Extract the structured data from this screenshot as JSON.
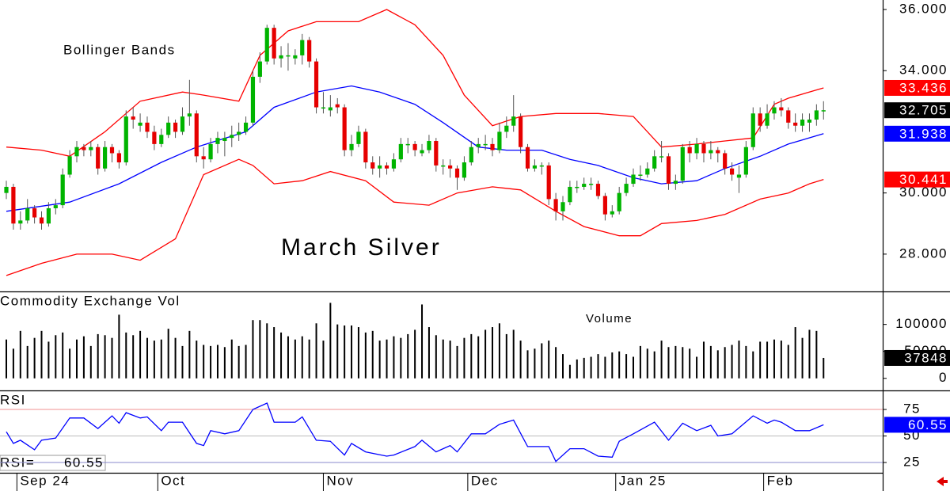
{
  "chart_data": [
    {
      "type": "candlestick",
      "title": "March Silver",
      "subtitle": "Bollinger Bands",
      "up_color": "#00b400",
      "down_color": "#e60000",
      "ohlc": [
        [
          30.0,
          30.4,
          29.8,
          30.2
        ],
        [
          30.2,
          30.3,
          28.8,
          29.0
        ],
        [
          29.0,
          29.4,
          28.8,
          29.1
        ],
        [
          29.1,
          29.8,
          29.0,
          29.5
        ],
        [
          29.5,
          29.6,
          29.0,
          29.2
        ],
        [
          29.2,
          29.4,
          28.8,
          29.0
        ],
        [
          29.0,
          29.7,
          28.9,
          29.5
        ],
        [
          29.5,
          29.8,
          29.3,
          29.6
        ],
        [
          29.6,
          30.8,
          29.5,
          30.6
        ],
        [
          30.6,
          31.4,
          30.5,
          31.2
        ],
        [
          31.2,
          31.7,
          31.0,
          31.5
        ],
        [
          31.5,
          31.6,
          31.2,
          31.4
        ],
        [
          31.4,
          31.7,
          31.2,
          31.5
        ],
        [
          31.5,
          31.6,
          30.6,
          30.8
        ],
        [
          30.8,
          31.7,
          30.7,
          31.5
        ],
        [
          31.5,
          31.6,
          31.0,
          31.3
        ],
        [
          31.3,
          31.4,
          30.8,
          31.0
        ],
        [
          31.0,
          32.7,
          30.9,
          32.5
        ],
        [
          32.5,
          32.8,
          32.1,
          32.4
        ],
        [
          32.2,
          32.6,
          32.0,
          32.3
        ],
        [
          32.3,
          32.5,
          31.8,
          32.0
        ],
        [
          32.0,
          32.2,
          31.4,
          31.6
        ],
        [
          31.6,
          32.1,
          31.5,
          31.9
        ],
        [
          31.9,
          32.5,
          31.8,
          32.3
        ],
        [
          32.3,
          32.4,
          31.8,
          32.0
        ],
        [
          32.0,
          32.8,
          31.9,
          32.5
        ],
        [
          32.5,
          33.7,
          32.2,
          32.6
        ],
        [
          32.6,
          32.7,
          31.0,
          31.2
        ],
        [
          31.2,
          31.5,
          30.8,
          31.1
        ],
        [
          31.1,
          31.8,
          31.0,
          31.6
        ],
        [
          31.6,
          32.0,
          31.3,
          31.8
        ],
        [
          31.7,
          32.0,
          31.2,
          31.8
        ],
        [
          31.8,
          32.2,
          31.5,
          31.9
        ],
        [
          31.9,
          32.3,
          31.7,
          32.0
        ],
        [
          32.0,
          32.5,
          31.9,
          32.3
        ],
        [
          32.3,
          34.0,
          32.2,
          33.8
        ],
        [
          33.8,
          34.6,
          33.6,
          34.3
        ],
        [
          34.3,
          35.5,
          34.2,
          35.4
        ],
        [
          35.4,
          35.5,
          34.2,
          34.4
        ],
        [
          34.4,
          34.8,
          34.1,
          34.5
        ],
        [
          34.5,
          34.9,
          34.0,
          34.5
        ],
        [
          34.4,
          34.7,
          34.2,
          34.5
        ],
        [
          34.5,
          35.2,
          34.2,
          35.0
        ],
        [
          35.0,
          35.1,
          34.1,
          34.3
        ],
        [
          34.3,
          34.4,
          32.6,
          32.8
        ],
        [
          32.8,
          33.3,
          32.6,
          32.8
        ],
        [
          32.7,
          33.2,
          32.5,
          32.8
        ],
        [
          32.9,
          33.1,
          32.6,
          32.8
        ],
        [
          32.8,
          32.9,
          31.2,
          31.4
        ],
        [
          31.4,
          31.9,
          31.2,
          31.6
        ],
        [
          31.6,
          32.2,
          31.5,
          32.0
        ],
        [
          32.0,
          32.1,
          30.8,
          31.0
        ],
        [
          31.0,
          31.2,
          30.6,
          30.8
        ],
        [
          30.8,
          31.2,
          30.5,
          30.9
        ],
        [
          30.9,
          31.0,
          30.6,
          30.8
        ],
        [
          30.8,
          31.3,
          30.7,
          31.1
        ],
        [
          31.1,
          31.8,
          31.0,
          31.6
        ],
        [
          31.6,
          31.8,
          31.3,
          31.6
        ],
        [
          31.6,
          31.7,
          31.2,
          31.4
        ],
        [
          31.3,
          31.6,
          31.2,
          31.4
        ],
        [
          31.4,
          31.9,
          31.3,
          31.7
        ],
        [
          31.7,
          31.8,
          30.7,
          30.9
        ],
        [
          30.9,
          31.1,
          30.6,
          30.9
        ],
        [
          30.9,
          31.1,
          30.5,
          30.8
        ],
        [
          30.8,
          30.9,
          30.1,
          30.5
        ],
        [
          30.5,
          31.2,
          30.4,
          31.0
        ],
        [
          31.0,
          31.7,
          30.9,
          31.5
        ],
        [
          31.5,
          31.8,
          31.3,
          31.6
        ],
        [
          31.6,
          31.9,
          31.4,
          31.6
        ],
        [
          31.6,
          31.8,
          31.2,
          31.4
        ],
        [
          31.4,
          32.3,
          31.3,
          32.0
        ],
        [
          32.0,
          32.5,
          31.8,
          32.2
        ],
        [
          32.2,
          33.2,
          32.0,
          32.5
        ],
        [
          32.5,
          32.6,
          31.3,
          31.5
        ],
        [
          31.5,
          31.6,
          30.7,
          30.8
        ],
        [
          30.8,
          31.1,
          30.7,
          30.9
        ],
        [
          30.9,
          31.0,
          30.6,
          30.9
        ],
        [
          30.9,
          31.0,
          29.6,
          29.8
        ],
        [
          29.8,
          30.0,
          29.1,
          29.4
        ],
        [
          29.4,
          29.9,
          29.1,
          29.7
        ],
        [
          29.7,
          30.4,
          29.6,
          30.2
        ],
        [
          30.2,
          30.4,
          30.0,
          30.2
        ],
        [
          30.2,
          30.5,
          30.1,
          30.3
        ],
        [
          30.3,
          30.5,
          30.1,
          30.3
        ],
        [
          30.3,
          30.4,
          29.8,
          29.9
        ],
        [
          29.9,
          30.0,
          29.1,
          29.3
        ],
        [
          29.3,
          29.6,
          29.2,
          29.4
        ],
        [
          29.4,
          30.2,
          29.3,
          30.0
        ],
        [
          30.0,
          30.5,
          29.9,
          30.3
        ],
        [
          30.3,
          30.8,
          30.2,
          30.6
        ],
        [
          30.6,
          30.9,
          30.4,
          30.6
        ],
        [
          30.6,
          31.0,
          30.5,
          30.8
        ],
        [
          30.8,
          31.4,
          30.7,
          31.2
        ],
        [
          31.2,
          31.7,
          31.0,
          31.2
        ],
        [
          31.2,
          31.3,
          30.1,
          30.3
        ],
        [
          30.3,
          30.6,
          30.1,
          30.4
        ],
        [
          30.4,
          31.6,
          30.3,
          31.5
        ],
        [
          31.5,
          31.7,
          31.0,
          31.3
        ],
        [
          31.3,
          31.8,
          31.1,
          31.6
        ],
        [
          31.6,
          31.7,
          31.0,
          31.3
        ],
        [
          31.3,
          31.7,
          31.1,
          31.4
        ],
        [
          31.4,
          31.5,
          31.0,
          31.3
        ],
        [
          31.3,
          31.4,
          30.6,
          30.8
        ],
        [
          30.8,
          31.0,
          30.4,
          30.6
        ],
        [
          30.5,
          30.9,
          30.0,
          30.6
        ],
        [
          30.6,
          31.7,
          30.5,
          31.5
        ],
        [
          31.5,
          32.8,
          31.4,
          32.6
        ],
        [
          32.6,
          32.8,
          32.0,
          32.2
        ],
        [
          32.2,
          32.9,
          32.1,
          32.6
        ],
        [
          32.6,
          33.0,
          32.4,
          32.8
        ],
        [
          32.8,
          33.1,
          32.5,
          32.7
        ],
        [
          32.7,
          32.8,
          32.1,
          32.3
        ],
        [
          32.3,
          32.6,
          32.0,
          32.2
        ],
        [
          32.2,
          32.6,
          32.0,
          32.4
        ],
        [
          32.3,
          32.6,
          32.0,
          32.4
        ],
        [
          32.4,
          32.9,
          32.2,
          32.7
        ],
        [
          32.7,
          33.0,
          32.4,
          32.705
        ]
      ],
      "series": [
        {
          "color": "#ff0000",
          "x": [
            0,
            5,
            9,
            14,
            19,
            25,
            28,
            33,
            36,
            40,
            44,
            50,
            54,
            58,
            62,
            65,
            69,
            73,
            78,
            84,
            89,
            93,
            98,
            102,
            106,
            109,
            111,
            116
          ],
          "values": [
            31.5,
            31.4,
            31.2,
            32.0,
            33.0,
            33.3,
            33.2,
            33.0,
            34.5,
            35.3,
            35.6,
            35.6,
            36.0,
            35.5,
            34.5,
            33.2,
            32.2,
            32.5,
            32.6,
            32.6,
            32.5,
            31.5,
            31.6,
            31.7,
            31.8,
            32.9,
            33.1,
            33.436
          ]
        },
        {
          "color": "#0000ff",
          "x": [
            0,
            9,
            16,
            22,
            27,
            34,
            38,
            44,
            49,
            53,
            58,
            62,
            67,
            71,
            76,
            80,
            84,
            89,
            93,
            98,
            102,
            107,
            111,
            116
          ],
          "values": [
            29.4,
            29.7,
            30.3,
            31.0,
            31.5,
            32.0,
            32.8,
            33.3,
            33.5,
            33.3,
            32.9,
            32.3,
            31.5,
            31.4,
            31.4,
            31.1,
            30.9,
            30.5,
            30.3,
            30.4,
            30.8,
            31.2,
            31.6,
            31.938
          ]
        },
        {
          "color": "#ff0000",
          "x": [
            0,
            5,
            10,
            15,
            19,
            24,
            28,
            33,
            35,
            38,
            42,
            46,
            51,
            55,
            60,
            64,
            69,
            73,
            78,
            82,
            87,
            90,
            93,
            98,
            102,
            107,
            111,
            114,
            116
          ],
          "values": [
            27.3,
            27.7,
            28.0,
            28.0,
            27.8,
            28.5,
            30.6,
            31.1,
            30.9,
            30.3,
            30.4,
            30.7,
            30.4,
            29.7,
            29.6,
            30.0,
            30.2,
            30.1,
            29.4,
            28.9,
            28.6,
            28.6,
            29.0,
            29.1,
            29.3,
            29.8,
            30.0,
            30.3,
            30.441
          ]
        }
      ],
      "xlim": [
        -0.9,
        124.4
      ],
      "ylim": [
        26.78,
        36.31
      ],
      "yticks": [
        {
          "value": 28,
          "label": "28.000"
        },
        {
          "value": 30,
          "label": "30.000"
        },
        {
          "value": 34,
          "label": "34.000"
        },
        {
          "value": 36,
          "label": "36.000"
        }
      ]
    },
    {
      "type": "bar",
      "title": "Commodity Exchange Vol",
      "subtitle": "Volume",
      "color": "#000000",
      "values": [
        72000,
        55000,
        88000,
        60000,
        75000,
        88000,
        68000,
        80000,
        85000,
        55000,
        72000,
        78000,
        60000,
        82000,
        80000,
        75000,
        118000,
        85000,
        80000,
        88000,
        75000,
        70000,
        72000,
        92000,
        75000,
        60000,
        88000,
        70000,
        62000,
        60000,
        62000,
        58000,
        72000,
        60000,
        62000,
        108000,
        108000,
        102000,
        95000,
        85000,
        78000,
        72000,
        78000,
        72000,
        102000,
        70000,
        140000,
        100000,
        98000,
        98000,
        95000,
        85000,
        88000,
        70000,
        72000,
        78000,
        75000,
        82000,
        90000,
        137000,
        95000,
        80000,
        72000,
        70000,
        60000,
        75000,
        82000,
        78000,
        90000,
        95000,
        102000,
        82000,
        90000,
        70000,
        52000,
        55000,
        65000,
        70000,
        58000,
        45000,
        25000,
        35000,
        38000,
        40000,
        45000,
        40000,
        48000,
        50000,
        45000,
        40000,
        60000,
        55000,
        50000,
        70000,
        58000,
        60000,
        58000,
        55000,
        40000,
        68000,
        60000,
        52000,
        58000,
        62000,
        70000,
        60000,
        50000,
        68000,
        68000,
        72000,
        70000,
        62000,
        95000,
        75000,
        90000,
        88000,
        37848
      ],
      "xlim": [
        -0.9,
        124.4
      ],
      "ylim": [
        -22400,
        159700
      ],
      "yticks": [
        0,
        50000,
        100000
      ]
    },
    {
      "type": "line",
      "title": "RSI",
      "subtitle": "RSI=",
      "color": "#0000ff",
      "x": [
        0,
        1,
        2,
        4,
        5,
        7,
        9,
        11,
        13,
        15,
        16,
        17,
        19,
        20,
        22,
        23,
        25,
        27,
        28,
        29,
        31,
        33,
        35,
        37,
        38,
        41,
        42,
        44,
        46,
        48,
        49,
        51,
        54,
        55,
        58,
        59,
        61,
        63,
        64,
        66,
        68,
        70,
        72,
        74,
        77,
        78,
        80,
        82,
        84,
        86,
        87,
        89,
        92,
        94,
        96,
        98,
        100,
        101,
        103,
        106,
        108,
        109,
        110,
        112,
        114,
        116
      ],
      "values": [
        54,
        43,
        46,
        37,
        46,
        48,
        67,
        67,
        57,
        69,
        62,
        72,
        67,
        68,
        55,
        63,
        63,
        43,
        41,
        55,
        52,
        55,
        75,
        81,
        63,
        63,
        68,
        46,
        45,
        32,
        43,
        35,
        31,
        32,
        40,
        46,
        35,
        41,
        35,
        52,
        52,
        61,
        65,
        40,
        40,
        26,
        38,
        38,
        31,
        30,
        45,
        52,
        63,
        46,
        62,
        55,
        60,
        50,
        52,
        69,
        62,
        65,
        63,
        55,
        55,
        60.55
      ],
      "xlim": [
        -0.9,
        124.4
      ],
      "ylim": [
        15.3,
        92.2
      ],
      "yticks": [
        25,
        50,
        75
      ],
      "xticks": [
        {
          "value": 1.5,
          "label": "Sep 24"
        },
        {
          "value": 21.5,
          "label": "Oct"
        },
        {
          "value": 45,
          "label": "Nov"
        },
        {
          "value": 65.5,
          "label": "Dec"
        },
        {
          "value": 86.5,
          "label": "Jan 25"
        },
        {
          "value": 107.5,
          "label": "Feb"
        }
      ]
    }
  ]
}
